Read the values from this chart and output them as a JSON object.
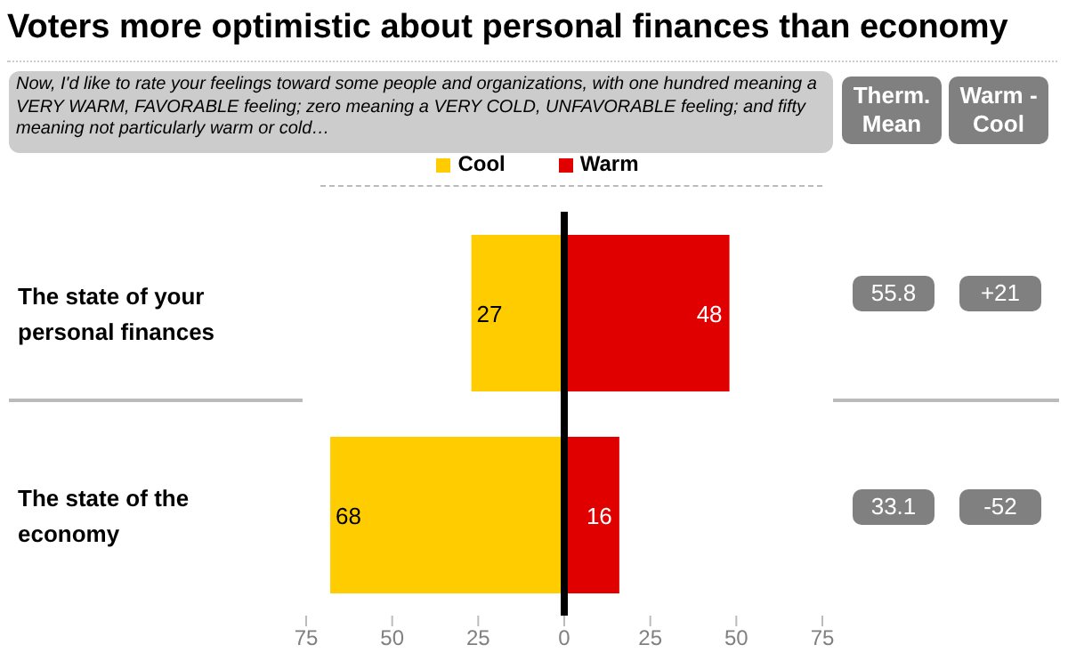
{
  "chart_data": {
    "type": "bar",
    "orientation": "horizontal",
    "title": "Voters more optimistic about personal finances than economy",
    "subtitle": "Now, I'd like to rate your feelings toward some people and organizations, with one hundred meaning a VERY WARM, FAVORABLE feeling; zero meaning a VERY COLD, UNFAVORABLE feeling; and fifty meaning not particularly warm or cold…",
    "categories": [
      "The state of your personal finances",
      "The state of the economy"
    ],
    "series": [
      {
        "name": "Cool",
        "color": "#ffcc00",
        "base": [
          -27,
          -68
        ],
        "values": [
          27,
          68
        ],
        "value_labels": [
          "27",
          "68"
        ]
      },
      {
        "name": "Warm",
        "color": "#e00000",
        "values": [
          48,
          16
        ],
        "value_labels": [
          "48",
          "16"
        ]
      }
    ],
    "xlim": [
      -75,
      75
    ],
    "xticks": [
      {
        "value": -75,
        "label": "75"
      },
      {
        "value": -50,
        "label": "50"
      },
      {
        "value": -25,
        "label": "25"
      },
      0,
      25,
      50,
      75
    ],
    "ref_lines": [
      {
        "axis": "x",
        "value": 0,
        "color": "#000000"
      }
    ],
    "legend": "top",
    "grid": false,
    "annotations": [
      "Therm. Mean",
      "Warm - Cool",
      "55.8",
      "+21",
      "33.1",
      "-52"
    ]
  }
}
